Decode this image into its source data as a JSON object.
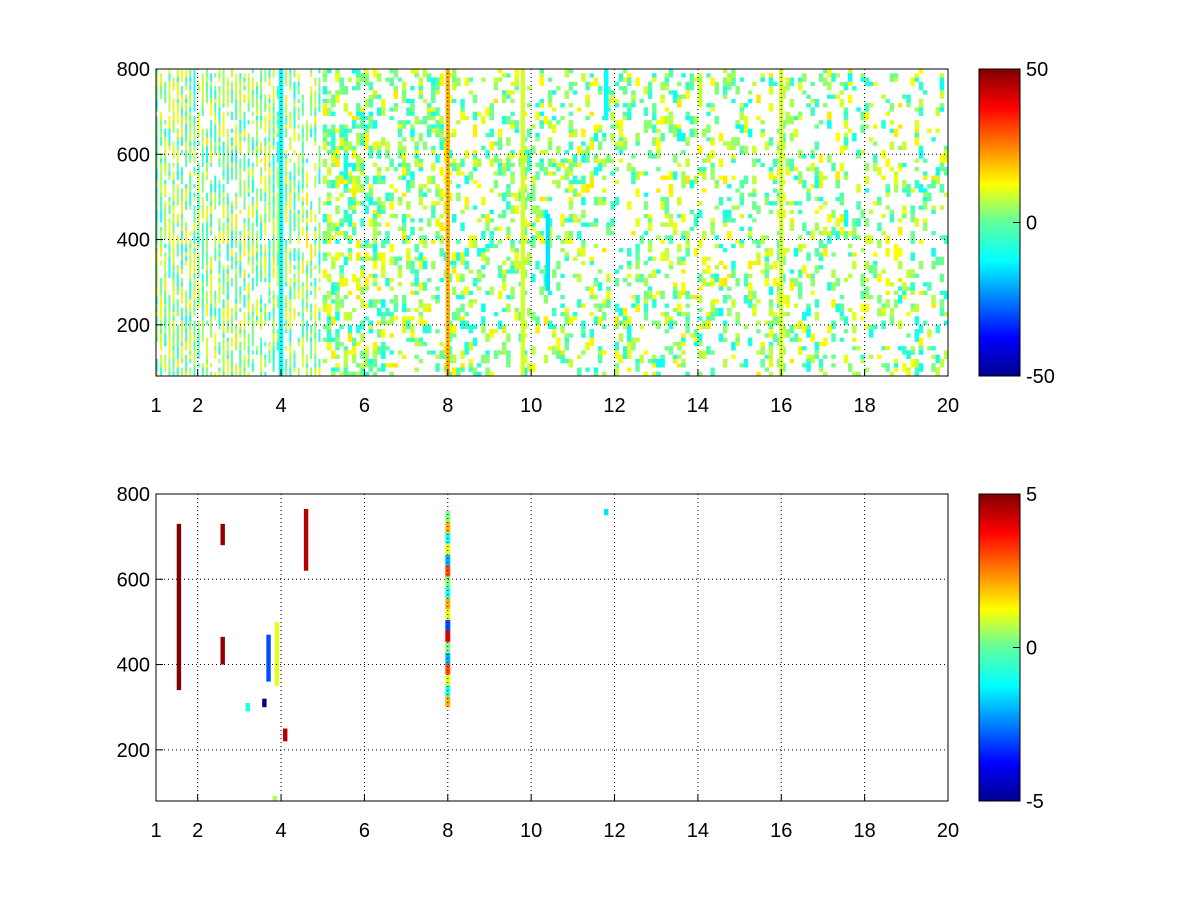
{
  "chart_data": [
    {
      "type": "heatmap",
      "title": "",
      "xlabel": "",
      "ylabel": "",
      "xlim": [
        1,
        20
      ],
      "ylim": [
        80,
        800
      ],
      "x_ticks": [
        "1",
        "2",
        "4",
        "6",
        "8",
        "10",
        "12",
        "14",
        "16",
        "18",
        "20"
      ],
      "y_ticks": [
        "200",
        "400",
        "600",
        "800"
      ],
      "grid": true,
      "colormap": "jet",
      "colorbar": {
        "min": -50,
        "max": 50,
        "tick_labels": [
          "50",
          "0",
          "-50"
        ]
      },
      "seed": 11,
      "density_profile": [
        {
          "x": 1,
          "d": 0.55
        },
        {
          "x": 2,
          "d": 0.55
        },
        {
          "x": 4,
          "d": 0.5
        },
        {
          "x": 6,
          "d": 0.3
        },
        {
          "x": 8,
          "d": 0.22
        },
        {
          "x": 10,
          "d": 0.22
        },
        {
          "x": 12,
          "d": 0.2
        },
        {
          "x": 14,
          "d": 0.22
        },
        {
          "x": 16,
          "d": 0.2
        },
        {
          "x": 20,
          "d": 0.18
        }
      ],
      "value_range": [
        -12,
        15
      ],
      "bands": [
        {
          "x": 8.0,
          "value": 20,
          "from": 80,
          "to": 800
        },
        {
          "x": 9.8,
          "value": 8,
          "from": 80,
          "to": 800
        },
        {
          "x": 4.0,
          "value": -12,
          "from": 80,
          "to": 800
        },
        {
          "x": 16.0,
          "value": 8,
          "from": 80,
          "to": 800
        },
        {
          "x": 10.4,
          "value": -15,
          "from": 280,
          "to": 460
        },
        {
          "x": 11.8,
          "value": -12,
          "from": 680,
          "to": 800
        }
      ]
    },
    {
      "type": "heatmap",
      "title": "",
      "xlabel": "",
      "ylabel": "",
      "xlim": [
        1,
        20
      ],
      "ylim": [
        80,
        800
      ],
      "x_ticks": [
        "1",
        "2",
        "4",
        "6",
        "8",
        "10",
        "12",
        "14",
        "16",
        "18",
        "20"
      ],
      "y_ticks": [
        "200",
        "400",
        "600",
        "800"
      ],
      "grid": true,
      "colormap": "jet",
      "colorbar": {
        "min": -5,
        "max": 5,
        "tick_labels": [
          "5",
          "0",
          "-5"
        ]
      },
      "seed": 5,
      "density_profile": [],
      "value_range": [
        0,
        0
      ],
      "bands": [
        {
          "x": 1.55,
          "value": 5,
          "from": 340,
          "to": 730
        },
        {
          "x": 2.6,
          "value": 4.8,
          "from": 400,
          "to": 465
        },
        {
          "x": 2.6,
          "value": 4.8,
          "from": 680,
          "to": 730
        },
        {
          "x": 4.6,
          "value": 4.5,
          "from": 620,
          "to": 765
        },
        {
          "x": 4.1,
          "value": 4.5,
          "from": 220,
          "to": 250
        },
        {
          "x": 3.7,
          "value": -3,
          "from": 360,
          "to": 470
        },
        {
          "x": 3.9,
          "value": 1,
          "from": 350,
          "to": 500
        },
        {
          "x": 3.6,
          "value": -5,
          "from": 300,
          "to": 320
        },
        {
          "x": 3.2,
          "value": -1,
          "from": 290,
          "to": 310
        },
        {
          "x": 3.85,
          "value": 0.5,
          "from": 80,
          "to": 92
        },
        {
          "x": 11.8,
          "value": -1.5,
          "from": 750,
          "to": 765
        }
      ],
      "multicolor_band": {
        "x": 8.0,
        "from": 300,
        "to": 760,
        "values": [
          2,
          -1,
          1,
          3,
          -2,
          0,
          4,
          -3,
          1,
          2,
          -1,
          0,
          3,
          -2,
          1,
          -1,
          2,
          0
        ]
      }
    }
  ]
}
